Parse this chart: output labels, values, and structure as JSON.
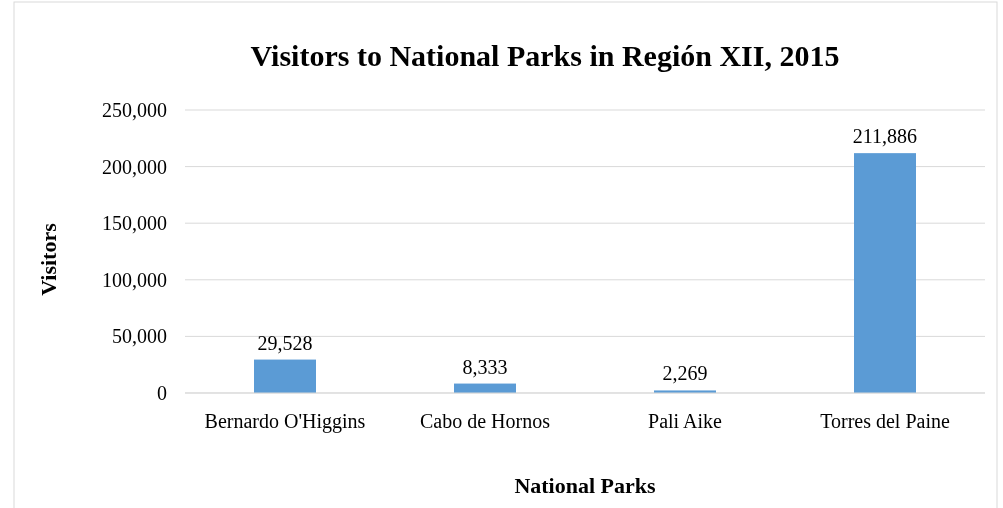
{
  "chart_data": {
    "type": "bar",
    "title": "Visitors to National Parks in Región XII, 2015",
    "xlabel": "National Parks",
    "ylabel": "Visitors",
    "categories": [
      "Bernardo O'Higgins",
      "Cabo de Hornos",
      "Pali Aike",
      "Torres del Paine"
    ],
    "values": [
      29528,
      8333,
      2269,
      211886
    ],
    "color": "#5b9bd5",
    "ylim": [
      0,
      250000
    ],
    "yticks": [
      0,
      {
        "value": 50000,
        "label": "50,000"
      },
      {
        "value": 100000,
        "label": "100,000"
      },
      {
        "value": 150000,
        "label": "150,000"
      },
      {
        "value": 200000,
        "label": "200,000"
      },
      {
        "value": 250000,
        "label": "250,000"
      }
    ],
    "grid": "y",
    "value_labels": [
      "29,528",
      "8,333",
      "2,269",
      "211,886"
    ]
  }
}
